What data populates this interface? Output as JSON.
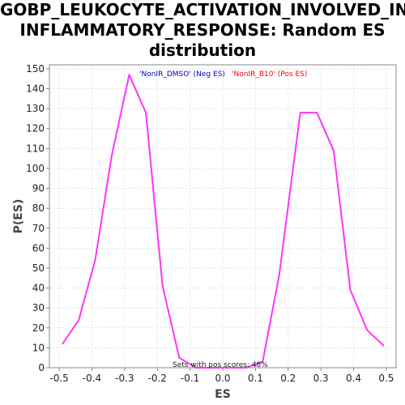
{
  "title_lines": [
    "GOBP_LEUKOCYTE_ACTIVATION_INVOLVED_IN_",
    "INFLAMMATORY_RESPONSE: Random ES",
    "distribution"
  ],
  "chart_data": {
    "type": "line",
    "title": "GOBP_LEUKOCYTE_ACTIVATION_INVOLVED_IN_INFLAMMATORY_RESPONSE: Random ES distribution",
    "xlabel": "ES",
    "ylabel": "P(ES)",
    "xlim": [
      -0.53,
      0.53
    ],
    "ylim": [
      0,
      152
    ],
    "xticks": [
      -0.5,
      -0.4,
      -0.3,
      -0.2,
      -0.1,
      0.0,
      0.1,
      0.2,
      0.3,
      0.4,
      0.5
    ],
    "xtick_labels": [
      "-0.5",
      "-0.4",
      "-0.3",
      "-0.2",
      "-0.1",
      "0.0",
      "0.1",
      "0.2",
      "0.3",
      "0.4",
      "0.5"
    ],
    "yticks": [
      0,
      10,
      20,
      30,
      40,
      50,
      60,
      70,
      80,
      90,
      100,
      110,
      120,
      130,
      140,
      150
    ],
    "grid": true,
    "legend": [
      {
        "label": "'NonIR_DMSO' (Neg ES)",
        "color": "#0000cc"
      },
      {
        "label": "'NonIR_B10' (Pos ES)",
        "color": "#ff0000"
      }
    ],
    "annotation": "Sets with pos scores: 48%",
    "series": [
      {
        "color": "#ff33ff",
        "x": [
          -0.49,
          -0.44,
          -0.39,
          -0.34,
          -0.286,
          -0.235,
          -0.184,
          -0.133,
          -0.082,
          -0.031,
          0.02,
          0.071,
          0.122,
          0.173,
          0.237,
          0.288,
          0.339,
          0.39,
          0.441,
          0.492
        ],
        "y": [
          12,
          24,
          54,
          106,
          147,
          128,
          41,
          5,
          0,
          0,
          0,
          0,
          3,
          47,
          128,
          128,
          109,
          39,
          19,
          11
        ]
      }
    ]
  }
}
